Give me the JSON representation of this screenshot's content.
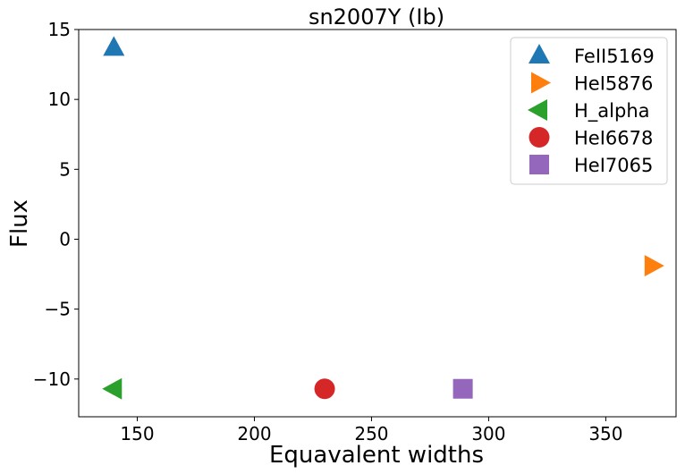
{
  "chart_data": {
    "type": "scatter",
    "title": "sn2007Y (Ib)",
    "xlabel": "Equavalent widths",
    "ylabel": "Flux",
    "xlim": [
      125,
      380
    ],
    "ylim": [
      -12.7,
      15
    ],
    "xticks": [
      150,
      200,
      250,
      300,
      350
    ],
    "yticks": [
      -10,
      -5,
      0,
      5,
      10,
      15
    ],
    "ytick_labels": [
      "−10",
      "−5",
      "0",
      "5",
      "10",
      "15"
    ],
    "grid": false,
    "legend_position": "top-right",
    "series": [
      {
        "name": "FeII5169",
        "marker": "triangle-up",
        "color": "#1f77b4",
        "x": 140,
        "y": 13.7
      },
      {
        "name": "HeI5876",
        "marker": "triangle-right",
        "color": "#ff7f0e",
        "x": 370,
        "y": -1.9
      },
      {
        "name": "H_alpha",
        "marker": "triangle-left",
        "color": "#2ca02c",
        "x": 140,
        "y": -10.7
      },
      {
        "name": "HeI6678",
        "marker": "circle",
        "color": "#d62728",
        "x": 230,
        "y": -10.7
      },
      {
        "name": "HeI7065",
        "marker": "square",
        "color": "#9467bd",
        "x": 289,
        "y": -10.7
      }
    ]
  }
}
